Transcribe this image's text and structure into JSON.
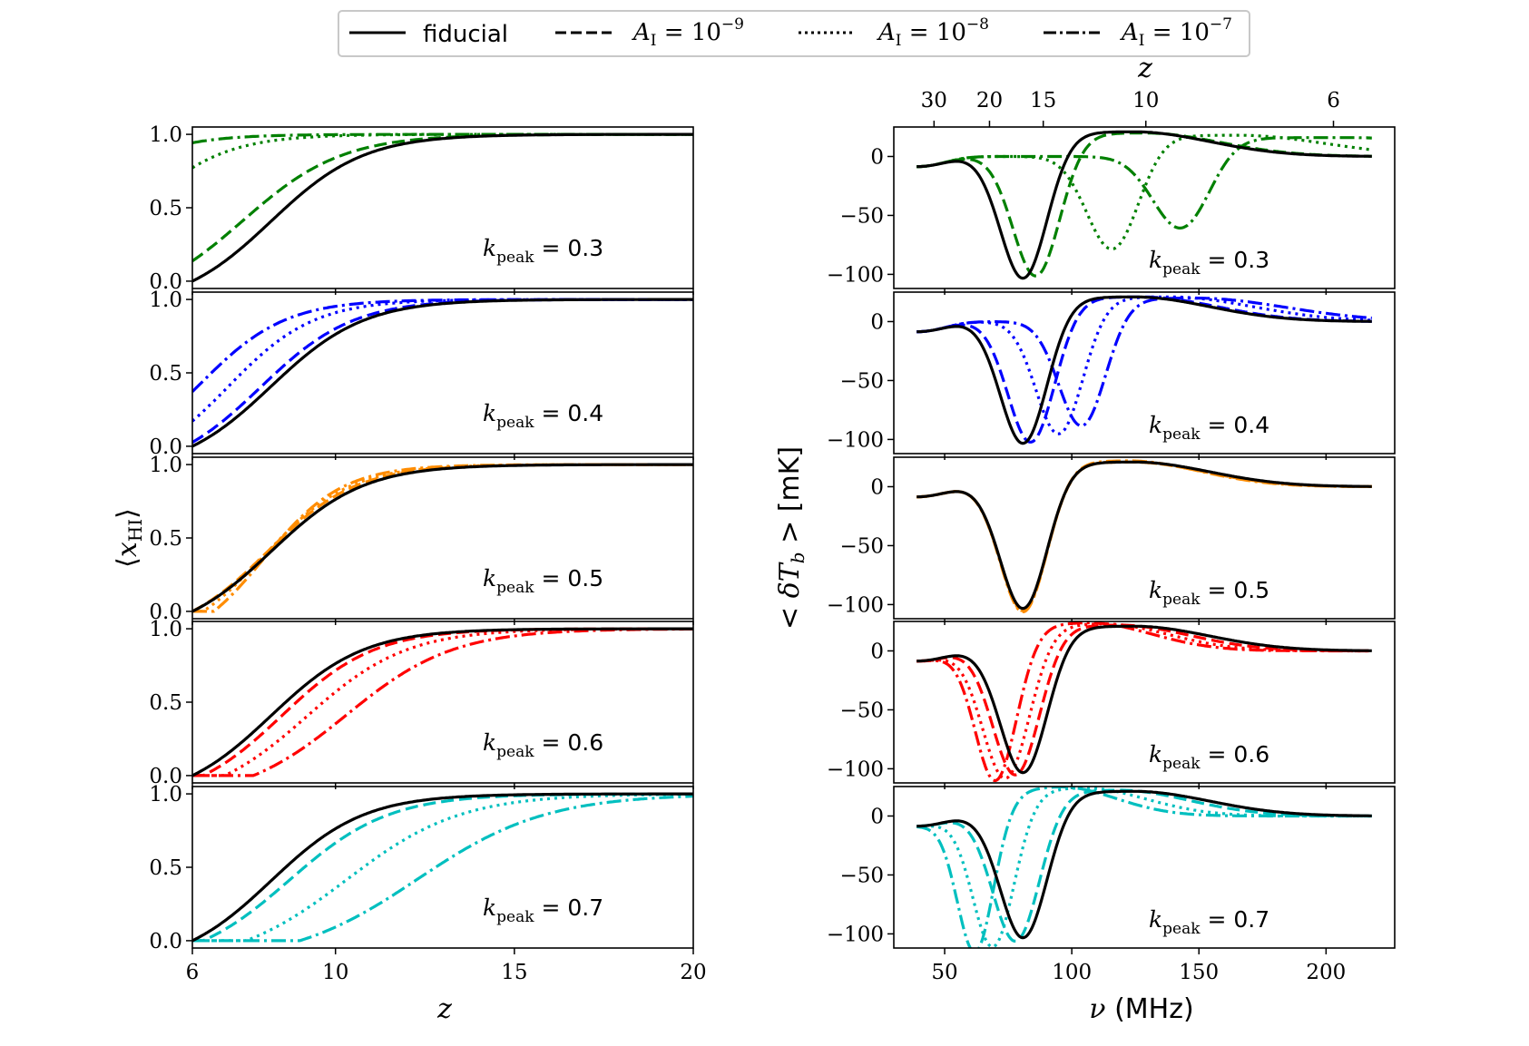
{
  "legend": {
    "entries": [
      {
        "key": "fiducial",
        "label": "fiducial",
        "dash": "solid"
      },
      {
        "key": "a9",
        "label": "A_I = 10^-9",
        "dash": "dashed"
      },
      {
        "key": "a8",
        "label": "A_I = 10^-8",
        "dash": "dotted"
      },
      {
        "key": "a7",
        "label": "A_I = 10^-7",
        "dash": "dashdot"
      }
    ]
  },
  "annotation_prefix": "k_peak",
  "chart_data": [
    {
      "type": "line",
      "panel": "left",
      "xlabel": "z",
      "ylabel": "⟨x_HI⟩",
      "xlim": [
        6,
        20
      ],
      "ylim": [
        -0.05,
        1.05
      ],
      "xticks": [
        6,
        10,
        15,
        20
      ],
      "yticks": [
        0.0,
        0.5,
        1.0
      ],
      "ytick_labels": [
        "0.0",
        "0.5",
        "1.0"
      ],
      "rows": [
        {
          "kpeak": "0.3",
          "color": "#008000",
          "series": {
            "fiducial": {
              "start": 6.0,
              "mid": 8.2,
              "width": 1.3
            },
            "a9": {
              "start": 5.0,
              "mid": 7.4,
              "width": 1.4
            },
            "a8": {
              "start": 0.0,
              "mid": 4.5,
              "width": 1.2
            },
            "a7": {
              "start": 0.0,
              "mid": 2.5,
              "width": 1.2
            }
          }
        },
        {
          "kpeak": "0.4",
          "color": "#0000ff",
          "series": {
            "fiducial": {
              "start": 6.0,
              "mid": 8.2,
              "width": 1.3
            },
            "a9": {
              "start": 5.8,
              "mid": 7.9,
              "width": 1.3
            },
            "a8": {
              "start": 5.0,
              "mid": 7.0,
              "width": 1.2
            },
            "a7": {
              "start": 4.0,
              "mid": 6.2,
              "width": 1.2
            }
          }
        },
        {
          "kpeak": "0.5",
          "color": "#ff8c00",
          "series": {
            "fiducial": {
              "start": 6.0,
              "mid": 8.2,
              "width": 1.3
            },
            "a9": {
              "start": 6.0,
              "mid": 8.1,
              "width": 1.25
            },
            "a8": {
              "start": 6.3,
              "mid": 8.0,
              "width": 1.2
            },
            "a7": {
              "start": 6.6,
              "mid": 8.0,
              "width": 1.1
            }
          }
        },
        {
          "kpeak": "0.6",
          "color": "#ff0000",
          "series": {
            "fiducial": {
              "start": 6.0,
              "mid": 8.2,
              "width": 1.3
            },
            "a9": {
              "start": 6.3,
              "mid": 8.5,
              "width": 1.3
            },
            "a8": {
              "start": 6.9,
              "mid": 9.2,
              "width": 1.4
            },
            "a7": {
              "start": 7.7,
              "mid": 10.3,
              "width": 1.5
            }
          }
        },
        {
          "kpeak": "0.7",
          "color": "#00bfbf",
          "series": {
            "fiducial": {
              "start": 6.0,
              "mid": 8.2,
              "width": 1.3
            },
            "a9": {
              "start": 6.3,
              "mid": 8.7,
              "width": 1.4
            },
            "a8": {
              "start": 7.5,
              "mid": 10.3,
              "width": 1.6
            },
            "a7": {
              "start": 9.0,
              "mid": 12.3,
              "width": 1.8
            }
          }
        }
      ]
    },
    {
      "type": "line",
      "panel": "right",
      "xlabel": "ν (MHz)",
      "ylabel": "< δT_b > [mK]",
      "top_xlabel": "z",
      "xlim": [
        30,
        227
      ],
      "ylim": [
        -112,
        25
      ],
      "xticks": [
        50,
        100,
        150,
        200
      ],
      "yticks": [
        0,
        -50,
        -100
      ],
      "ytick_labels": [
        "0",
        "−50",
        "−100"
      ],
      "top_ticks_z": [
        30,
        20,
        15,
        10,
        6
      ],
      "curve_start_nu": 39,
      "curve_end_nu": 218,
      "rows": [
        {
          "kpeak": "0.3",
          "color": "#008000",
          "series": {
            "fiducial": {
              "trough_nu": 81,
              "trough_mK": -105,
              "width": 9,
              "peak_nu": 124,
              "peak_mK": 21,
              "peak_width": 30
            },
            "a9": {
              "trough_nu": 86,
              "trough_mK": -103,
              "width": 9,
              "peak_nu": 128,
              "peak_mK": 20,
              "peak_width": 30
            },
            "a8": {
              "trough_nu": 116,
              "trough_mK": -80,
              "width": 10,
              "peak_nu": 165,
              "peak_mK": 18,
              "peak_width": 35
            },
            "a7": {
              "trough_nu": 143,
              "trough_mK": -62,
              "width": 11,
              "peak_nu": 210,
              "peak_mK": 16,
              "peak_width": 40
            }
          }
        },
        {
          "kpeak": "0.4",
          "color": "#0000ff",
          "series": {
            "fiducial": {
              "trough_nu": 81,
              "trough_mK": -105,
              "width": 9,
              "peak_nu": 124,
              "peak_mK": 21,
              "peak_width": 30
            },
            "a9": {
              "trough_nu": 84,
              "trough_mK": -104,
              "width": 9,
              "peak_nu": 127,
              "peak_mK": 21,
              "peak_width": 30
            },
            "a8": {
              "trough_nu": 95,
              "trough_mK": -97,
              "width": 9,
              "peak_nu": 138,
              "peak_mK": 21,
              "peak_width": 33
            },
            "a7": {
              "trough_nu": 104,
              "trough_mK": -90,
              "width": 9,
              "peak_nu": 148,
              "peak_mK": 20,
              "peak_width": 36
            }
          }
        },
        {
          "kpeak": "0.5",
          "color": "#ff8c00",
          "series": {
            "fiducial": {
              "trough_nu": 81,
              "trough_mK": -105,
              "width": 9,
              "peak_nu": 124,
              "peak_mK": 21,
              "peak_width": 30
            },
            "a9": {
              "trough_nu": 81,
              "trough_mK": -106,
              "width": 9,
              "peak_nu": 123,
              "peak_mK": 21,
              "peak_width": 29
            },
            "a8": {
              "trough_nu": 81,
              "trough_mK": -107,
              "width": 9,
              "peak_nu": 123,
              "peak_mK": 21,
              "peak_width": 29
            },
            "a7": {
              "trough_nu": 81,
              "trough_mK": -108,
              "width": 9,
              "peak_nu": 122,
              "peak_mK": 22,
              "peak_width": 28
            }
          }
        },
        {
          "kpeak": "0.6",
          "color": "#ff0000",
          "series": {
            "fiducial": {
              "trough_nu": 81,
              "trough_mK": -105,
              "width": 9,
              "peak_nu": 124,
              "peak_mK": 21,
              "peak_width": 30
            },
            "a9": {
              "trough_nu": 78,
              "trough_mK": -107,
              "width": 9,
              "peak_nu": 118,
              "peak_mK": 22,
              "peak_width": 28
            },
            "a8": {
              "trough_nu": 74,
              "trough_mK": -110,
              "width": 9,
              "peak_nu": 112,
              "peak_mK": 23,
              "peak_width": 26
            },
            "a7": {
              "trough_nu": 70,
              "trough_mK": -112,
              "width": 8,
              "peak_nu": 106,
              "peak_mK": 24,
              "peak_width": 25
            }
          }
        },
        {
          "kpeak": "0.7",
          "color": "#00bfbf",
          "series": {
            "fiducial": {
              "trough_nu": 81,
              "trough_mK": -105,
              "width": 9,
              "peak_nu": 124,
              "peak_mK": 21,
              "peak_width": 30
            },
            "a9": {
              "trough_nu": 78,
              "trough_mK": -108,
              "width": 9,
              "peak_nu": 118,
              "peak_mK": 22,
              "peak_width": 28
            },
            "a8": {
              "trough_nu": 69,
              "trough_mK": -113,
              "width": 8,
              "peak_nu": 104,
              "peak_mK": 24,
              "peak_width": 25
            },
            "a7": {
              "trough_nu": 62,
              "trough_mK": -117,
              "width": 7,
              "peak_nu": 95,
              "peak_mK": 25,
              "peak_width": 22
            }
          }
        }
      ]
    }
  ]
}
